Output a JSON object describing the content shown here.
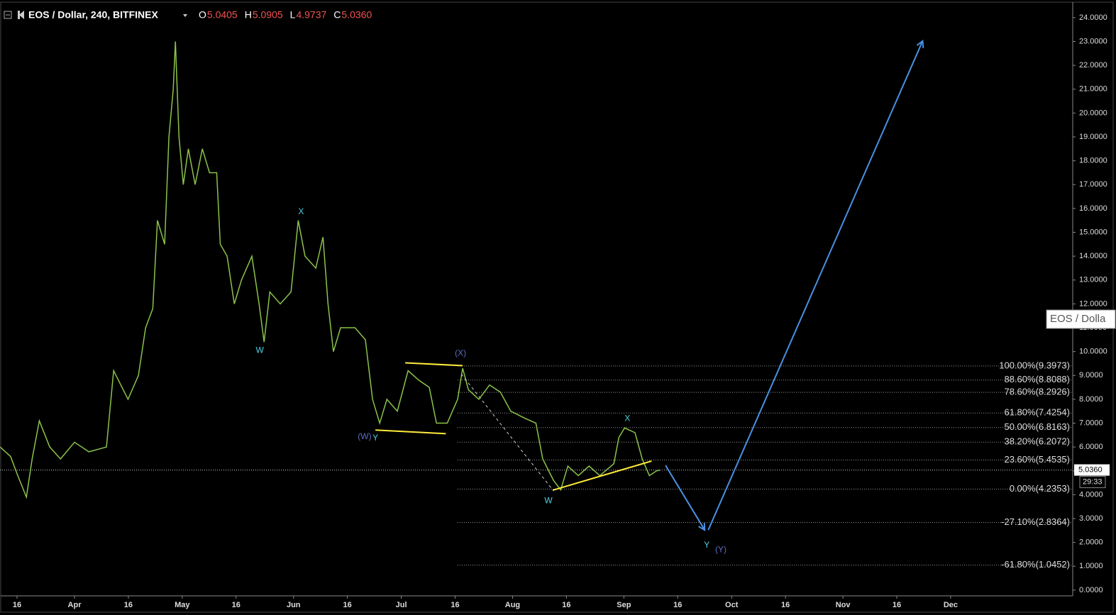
{
  "chart_data": {
    "type": "line",
    "title": "EOS / Dollar, 240, BITFINEX",
    "ohlc": [
      {
        "name": "O",
        "value": 5.0405
      },
      {
        "name": "H",
        "value": 5.0905
      },
      {
        "name": "L",
        "value": 4.9737
      },
      {
        "name": "C",
        "value": {
          "value": 5.036,
          "label": "5.0360"
        }
      }
    ],
    "series": [
      {
        "name": "EOS / Dolla",
        "color": "#8bc34a",
        "x": [
          70.3,
          73.2,
          75.2,
          77.6,
          79.2,
          81.2,
          84.1,
          87.1,
          91.0,
          95.0,
          99.9,
          101.9,
          105.9,
          108.8,
          110.8,
          112.8,
          114.1,
          116.1,
          117.3,
          118.5,
          119.1,
          120.1,
          121.3,
          122.7,
          124.6,
          126.6,
          128.6,
          130.6,
          131.6,
          133.5,
          135.5,
          137.5,
          140.4,
          142.4,
          143.8,
          145.4,
          148.3,
          151.3,
          153.3,
          155.2,
          158.2,
          160.2,
          161.6,
          163.1,
          165.1,
          169.1,
          172.0,
          174.0,
          176.0,
          178.0,
          180.9,
          183.9,
          186.9,
          189.8,
          191.8,
          194.8,
          197.7,
          199.1,
          200.7,
          203.6,
          206.6,
          209.6,
          212.5,
          216.5,
          219.5,
          221.4,
          224.4,
          226.4,
          228.4,
          231.3,
          234.3,
          237.3,
          241.2,
          242.6,
          244.2,
          247.1,
          249.1,
          251.1,
          253.1,
          254.1
        ],
        "values": [
          6.0,
          5.6,
          4.8,
          3.9,
          5.5,
          7.1,
          6.0,
          5.5,
          6.2,
          5.8,
          6.0,
          9.2,
          8.0,
          9.0,
          11.0,
          11.8,
          15.5,
          14.5,
          19,
          21,
          23.0,
          19,
          17,
          18.5,
          17,
          18.5,
          17.5,
          17.5,
          14.5,
          14,
          12,
          13,
          14,
          12,
          10.4,
          12.5,
          12,
          12.5,
          15.5,
          14,
          13.5,
          14.8,
          12,
          10,
          11,
          11,
          10.5,
          8,
          7,
          8,
          7.5,
          9.2,
          8.8,
          8.5,
          7,
          7,
          8,
          9.3,
          8.4,
          8,
          8.6,
          8.3,
          7.5,
          7.2,
          7,
          5.5,
          4.6,
          4.2,
          5.2,
          4.8,
          5.2,
          4.8,
          5.3,
          6.4,
          6.8,
          6.6,
          5.5,
          4.8,
          5.0,
          5.036
        ]
      }
    ],
    "current_price": {
      "value": 5.036,
      "label": "5.0360"
    },
    "countdown": "29:33",
    "xlim": [
      70.25,
      369
    ],
    "ylim": [
      -0.24,
      24.65
    ],
    "xticks": [
      {
        "value": 75,
        "label": "16"
      },
      {
        "value": 91,
        "label": "Apr"
      },
      {
        "value": 106,
        "label": "16"
      },
      {
        "value": 121,
        "label": "May"
      },
      {
        "value": 136,
        "label": "16"
      },
      {
        "value": 152,
        "label": "Jun"
      },
      {
        "value": 167,
        "label": "16"
      },
      {
        "value": 182,
        "label": "Jul"
      },
      {
        "value": 197,
        "label": "16"
      },
      {
        "value": 213,
        "label": "Aug"
      },
      {
        "value": 228,
        "label": "16"
      },
      {
        "value": 244,
        "label": "Sep"
      },
      {
        "value": 259,
        "label": "16"
      },
      {
        "value": 274,
        "label": "Oct"
      },
      {
        "value": 289,
        "label": "16"
      },
      {
        "value": 305,
        "label": "Nov"
      },
      {
        "value": 320,
        "label": "16"
      },
      {
        "value": 335,
        "label": "Dec"
      }
    ],
    "yticks": [
      {
        "value": 0,
        "label": "0.0000"
      },
      {
        "value": 1,
        "label": "1.0000"
      },
      {
        "value": 2,
        "label": "2.0000"
      },
      {
        "value": 3,
        "label": "3.0000"
      },
      {
        "value": 4,
        "label": "4.0000"
      },
      {
        "value": 5,
        "label": "5.0000"
      },
      {
        "value": 6,
        "label": "6.0000"
      },
      {
        "value": 7,
        "label": "7.0000"
      },
      {
        "value": 8,
        "label": "8.0000"
      },
      {
        "value": 9,
        "label": "9.0000"
      },
      {
        "value": 10,
        "label": "10.0000"
      },
      {
        "value": 11,
        "label": "11.0000"
      },
      {
        "value": 12,
        "label": "12.0000"
      },
      {
        "value": 13,
        "label": "13.0000"
      },
      {
        "value": 14,
        "label": "14.0000"
      },
      {
        "value": 15,
        "label": "15.0000"
      },
      {
        "value": 16,
        "label": "16.0000"
      },
      {
        "value": 17,
        "label": "17.0000"
      },
      {
        "value": 18,
        "label": "18.0000"
      },
      {
        "value": 19,
        "label": "19.0000"
      },
      {
        "value": 20,
        "label": "20.0000"
      },
      {
        "value": 21,
        "label": "21.0000"
      },
      {
        "value": 22,
        "label": "22.0000"
      },
      {
        "value": 23,
        "label": "23.0000"
      },
      {
        "value": 24,
        "label": "24.0000"
      }
    ],
    "fib_start": 197.7,
    "fib_levels": [
      {
        "label": "100.00%(9.3973)",
        "value": 9.3973
      },
      {
        "label": "88.60%(8.8088)",
        "value": 8.8088
      },
      {
        "label": "78.60%(8.2926)",
        "value": 8.2926
      },
      {
        "label": "61.80%(7.4254)",
        "value": 7.4254
      },
      {
        "label": "50.00%(6.8163)",
        "value": 6.8163
      },
      {
        "label": "38.20%(6.2072)",
        "value": 6.2072
      },
      {
        "label": "23.60%(5.4535)",
        "value": 5.4535
      },
      {
        "label": "0.00%(4.2353)",
        "value": 4.2353
      },
      {
        "label": "-27.10%(2.8364)",
        "value": 2.8364
      },
      {
        "label": "-61.80%(1.0452)",
        "value": 1.0452
      }
    ],
    "annotations": [
      {
        "text": "X",
        "x": 154.1,
        "y": 15.86,
        "color": "#4dd0e1"
      },
      {
        "text": "W",
        "x": 142.6,
        "y": 10.04,
        "color": "#4dd0e1"
      },
      {
        "text": "(X)",
        "x": 198.5,
        "y": 9.92,
        "color": "#5c6bc0"
      },
      {
        "text": "(W)",
        "x": 171.8,
        "y": 6.42,
        "color": "#5c6bc0"
      },
      {
        "text": "Y",
        "x": 174.8,
        "y": 6.36,
        "color": "#4dd0e1"
      },
      {
        "text": "W",
        "x": 223.0,
        "y": 3.74,
        "color": "#4dd0e1"
      },
      {
        "text": "X",
        "x": 245.0,
        "y": 7.19,
        "color": "#4dd0e1"
      },
      {
        "text": "Y",
        "x": 267.1,
        "y": 1.87,
        "color": "#4dd0e1"
      },
      {
        "text": "(Y)",
        "x": 271.0,
        "y": 1.69,
        "color": "#5c6bc0"
      }
    ],
    "lines": [
      {
        "x": [
          183.1,
          199.1
        ],
        "y": [
          9.53,
          9.41
        ],
        "color": "#ffeb3b"
      },
      {
        "x": [
          174.8,
          194.4
        ],
        "y": [
          6.71,
          6.56
        ],
        "color": "#ffeb3b"
      },
      {
        "x": [
          224.2,
          251.7
        ],
        "y": [
          4.19,
          5.41
        ],
        "color": "#ffeb3b"
      },
      {
        "x": [
          198.7,
          224.4
        ],
        "y": [
          9.06,
          4.16
        ],
        "color": "#cccccc",
        "dashed": true
      },
      {
        "x": [
          255.6,
          266.5
        ],
        "y": [
          5.23,
          2.52
        ],
        "color": "#4a90e2",
        "arrow": true
      },
      {
        "x": [
          267.5,
          327.2
        ],
        "y": [
          2.52,
          23.02
        ],
        "color": "#4a90e2",
        "arrow": true
      }
    ]
  }
}
